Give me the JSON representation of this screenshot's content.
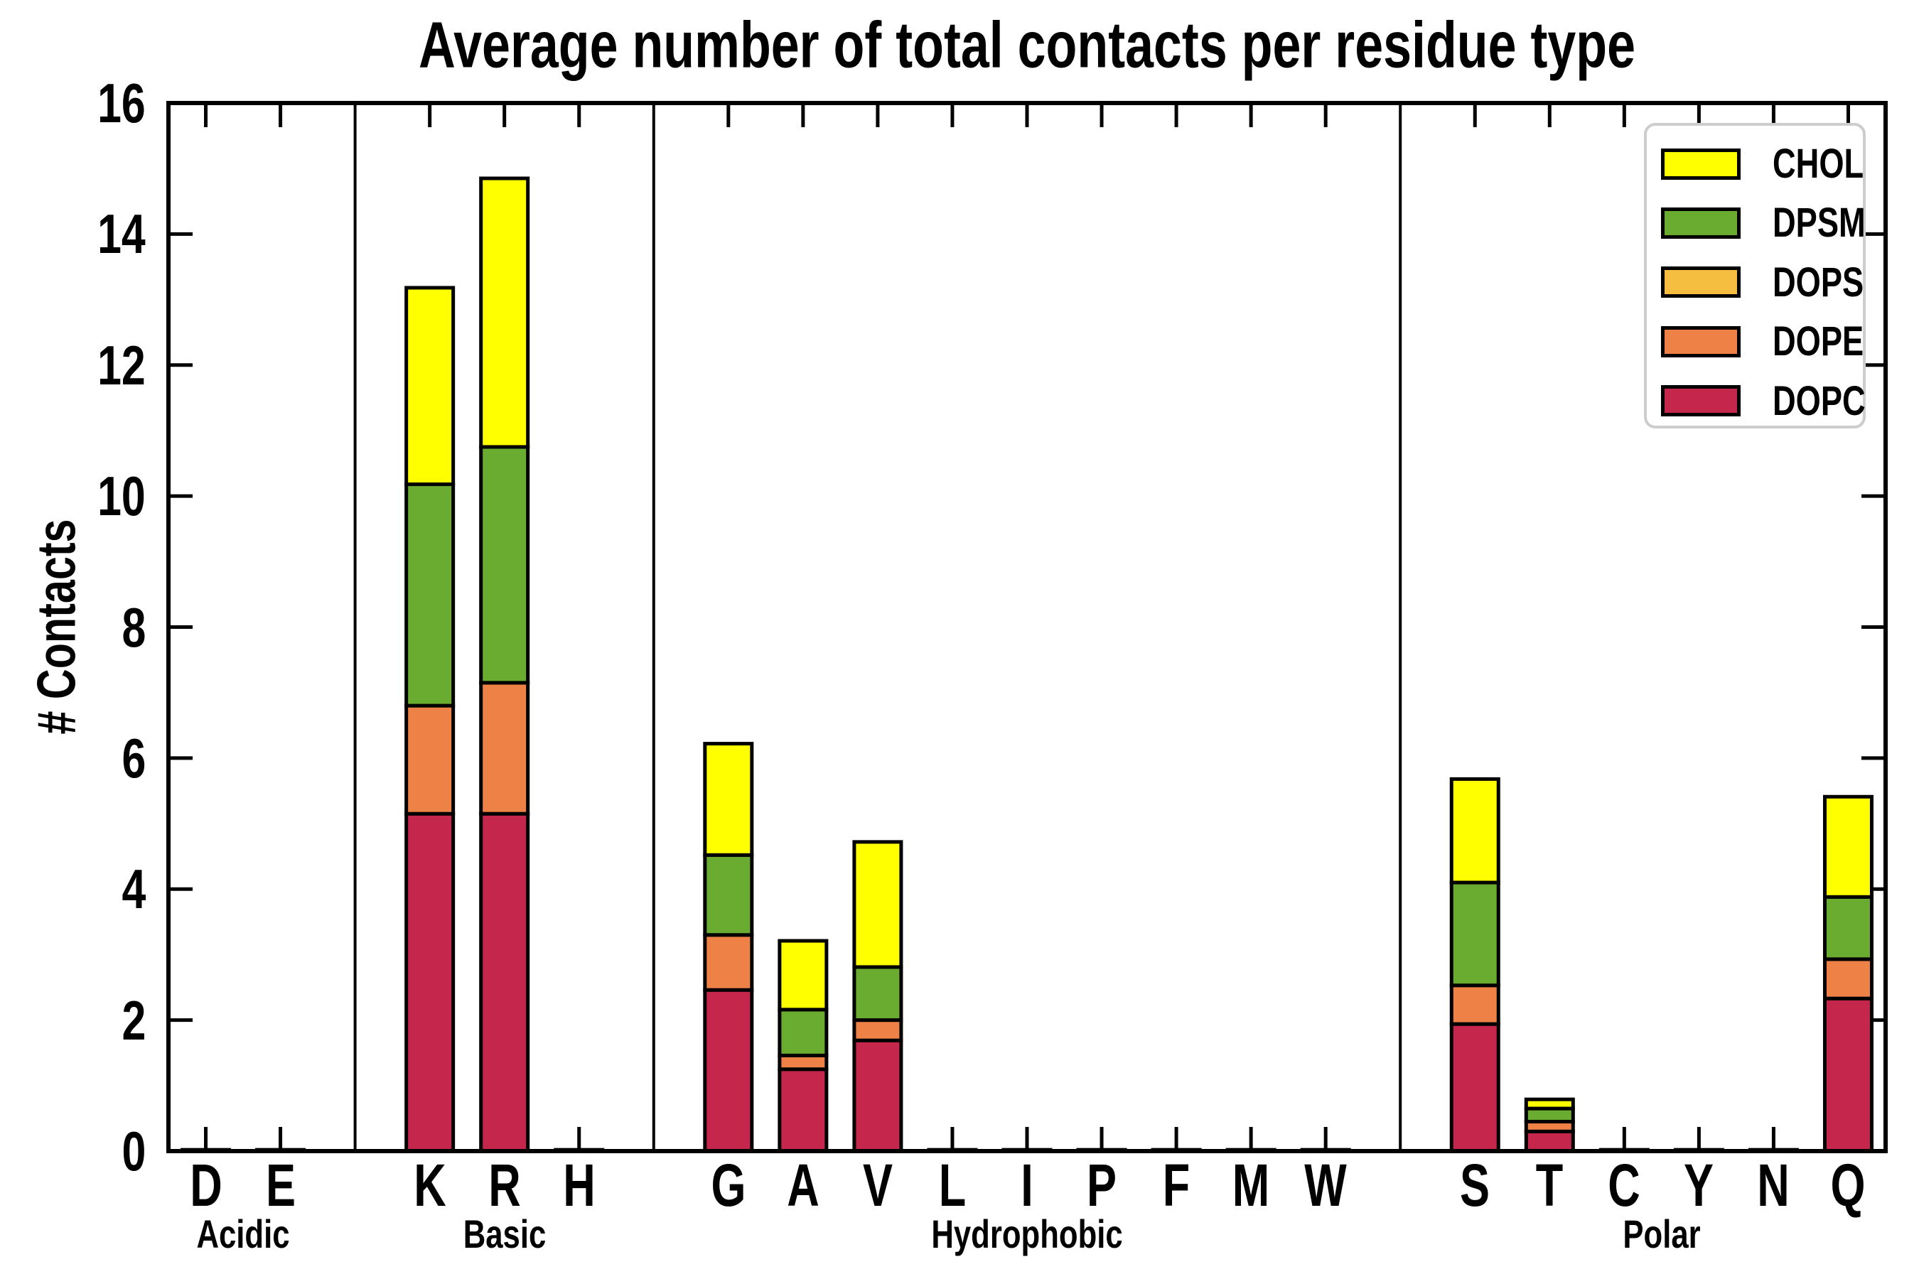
{
  "chart_data": {
    "type": "bar",
    "stacked": true,
    "title": "Average number of total contacts per residue type",
    "xlabel": "",
    "ylabel": "# Contacts",
    "ylim": [
      0,
      16
    ],
    "yticks": [
      0,
      2,
      4,
      6,
      8,
      10,
      12,
      14,
      16
    ],
    "grid": false,
    "categories": [
      "D",
      "E",
      "K",
      "R",
      "H",
      "G",
      "A",
      "V",
      "L",
      "I",
      "P",
      "F",
      "M",
      "W",
      "S",
      "T",
      "C",
      "Y",
      "N",
      "Q"
    ],
    "category_groups": [
      {
        "label": "Acidic",
        "categories": [
          "D",
          "E"
        ]
      },
      {
        "label": "Basic",
        "categories": [
          "K",
          "R",
          "H"
        ]
      },
      {
        "label": "Hydrophobic",
        "categories": [
          "G",
          "A",
          "V",
          "L",
          "I",
          "P",
          "F",
          "M",
          "W"
        ]
      },
      {
        "label": "Polar",
        "categories": [
          "S",
          "T",
          "C",
          "Y",
          "N",
          "Q"
        ]
      }
    ],
    "stack_order_bottom_to_top": [
      "DOPC",
      "DOPE",
      "DOPS",
      "DPSM",
      "CHOL"
    ],
    "legend": {
      "position": "upper right",
      "entries_top_to_bottom": [
        "CHOL",
        "DPSM",
        "DOPS",
        "DOPE",
        "DOPC"
      ]
    },
    "series": [
      {
        "name": "CHOL",
        "color": "#FFFF00",
        "values": [
          0,
          0,
          3.0,
          4.1,
          0,
          1.7,
          1.05,
          1.91,
          0,
          0,
          0,
          0,
          0,
          0,
          1.58,
          0.14,
          0,
          0,
          0,
          1.53
        ]
      },
      {
        "name": "DPSM",
        "color": "#69AC2F",
        "values": [
          0,
          0,
          3.38,
          3.6,
          0,
          1.22,
          0.7,
          0.81,
          0,
          0,
          0,
          0,
          0,
          0,
          1.57,
          0.2,
          0,
          0,
          0,
          0.95
        ]
      },
      {
        "name": "DOPS",
        "color": "#F5BE41",
        "values": [
          0,
          0,
          0,
          0,
          0,
          0,
          0,
          0,
          0,
          0,
          0,
          0,
          0,
          0,
          0,
          0,
          0,
          0,
          0,
          0
        ]
      },
      {
        "name": "DOPE",
        "color": "#EE8145",
        "values": [
          0,
          0,
          1.65,
          2.0,
          0,
          0.84,
          0.21,
          0.31,
          0,
          0,
          0,
          0,
          0,
          0,
          0.59,
          0.15,
          0,
          0,
          0,
          0.6
        ]
      },
      {
        "name": "DOPC",
        "color": "#C5264B",
        "values": [
          0.02,
          0.02,
          5.15,
          5.15,
          0.02,
          2.46,
          1.25,
          1.69,
          0.02,
          0.02,
          0.02,
          0.02,
          0.02,
          0.02,
          1.94,
          0.3,
          0.02,
          0.02,
          0.02,
          2.33
        ]
      }
    ],
    "bar_totals": {
      "D": 0.02,
      "E": 0.02,
      "K": 13.18,
      "R": 14.85,
      "H": 0.02,
      "G": 6.22,
      "A": 3.21,
      "V": 4.72,
      "L": 0.02,
      "I": 0.02,
      "P": 0.02,
      "F": 0.02,
      "M": 0.02,
      "W": 0.02,
      "S": 5.68,
      "T": 0.79,
      "C": 0.02,
      "Y": 0.02,
      "N": 0.02,
      "Q": 5.41
    }
  },
  "style_colors": {
    "bar_edge": "#000000",
    "axes": "#000000",
    "legend_border": "#cdcdcd",
    "background": "#ffffff"
  }
}
